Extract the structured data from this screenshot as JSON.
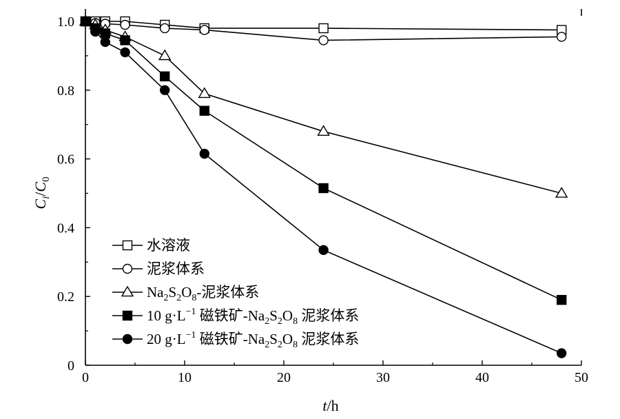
{
  "chart_data": {
    "type": "line",
    "xlabel_italic": "t",
    "xlabel_rest": "/h",
    "ylabel_parts": {
      "c1": "C",
      "sub1": "i",
      "slash": "/",
      "c2": "C",
      "sub2": "0"
    },
    "xlim": [
      0,
      50
    ],
    "ylim": [
      0,
      1.0
    ],
    "xticks": [
      "0",
      "10",
      "20",
      "30",
      "40",
      "50"
    ],
    "yticks": [
      "0",
      "0.2",
      "0.4",
      "0.6",
      "0.8",
      "1.0"
    ],
    "grid": false,
    "legend_position": "bottom-left",
    "series": [
      {
        "name": "水溶液",
        "marker": "square-open",
        "x": [
          0,
          1,
          2,
          4,
          8,
          12,
          24,
          48
        ],
        "y": [
          1.0,
          1.0,
          1.0,
          1.0,
          0.99,
          0.98,
          0.98,
          0.975
        ]
      },
      {
        "name": "泥浆体系",
        "marker": "circle-open",
        "x": [
          0,
          1,
          2,
          4,
          8,
          12,
          24,
          48
        ],
        "y": [
          1.0,
          0.995,
          0.993,
          0.99,
          0.98,
          0.975,
          0.945,
          0.955
        ]
      },
      {
        "name": "Na2S2O8-泥浆体系",
        "marker": "triangle-open",
        "x": [
          0,
          1,
          2,
          4,
          8,
          12,
          24,
          48
        ],
        "y": [
          1.0,
          0.99,
          0.975,
          0.955,
          0.9,
          0.79,
          0.68,
          0.5
        ]
      },
      {
        "name": "10 g·L−1 磁铁矿-Na2S2O8 泥浆体系",
        "marker": "square-filled",
        "x": [
          0,
          1,
          2,
          4,
          8,
          12,
          24,
          48
        ],
        "y": [
          1.0,
          0.98,
          0.965,
          0.945,
          0.84,
          0.74,
          0.515,
          0.19
        ]
      },
      {
        "name": "20 g·L−1 磁铁矿-Na2S2O8 泥浆体系",
        "marker": "circle-filled",
        "x": [
          0,
          1,
          2,
          4,
          8,
          12,
          24,
          48
        ],
        "y": [
          1.0,
          0.97,
          0.94,
          0.91,
          0.8,
          0.615,
          0.335,
          0.035
        ]
      }
    ],
    "legend": [
      {
        "runs": [
          {
            "t": "水溶液"
          }
        ]
      },
      {
        "runs": [
          {
            "t": "泥浆体系"
          }
        ]
      },
      {
        "runs": [
          {
            "t": "Na"
          },
          {
            "t": "2",
            "sub": true
          },
          {
            "t": "S"
          },
          {
            "t": "2",
            "sub": true
          },
          {
            "t": "O"
          },
          {
            "t": "8",
            "sub": true
          },
          {
            "t": "-泥浆体系"
          }
        ]
      },
      {
        "runs": [
          {
            "t": "10 g·L"
          },
          {
            "t": "−1",
            "sup": true
          },
          {
            "t": " 磁铁矿-Na"
          },
          {
            "t": "2",
            "sub": true
          },
          {
            "t": "S"
          },
          {
            "t": "2",
            "sub": true
          },
          {
            "t": "O"
          },
          {
            "t": "8",
            "sub": true
          },
          {
            "t": " 泥浆体系"
          }
        ]
      },
      {
        "runs": [
          {
            "t": "20 g·L"
          },
          {
            "t": "−1",
            "sup": true
          },
          {
            "t": " 磁铁矿-Na"
          },
          {
            "t": "2",
            "sub": true
          },
          {
            "t": "S"
          },
          {
            "t": "2",
            "sub": true
          },
          {
            "t": "O"
          },
          {
            "t": "8",
            "sub": true
          },
          {
            "t": " 泥浆体系"
          }
        ]
      }
    ]
  }
}
